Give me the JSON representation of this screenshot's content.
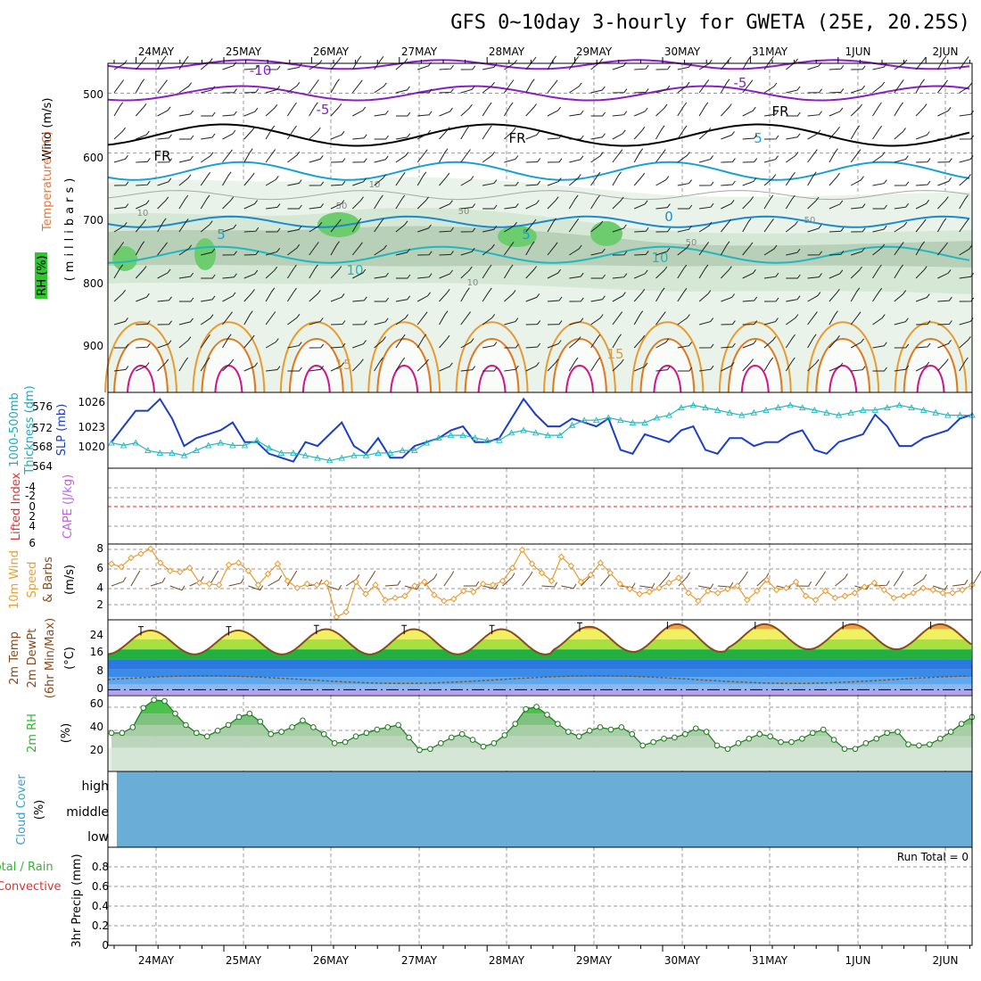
{
  "title": "GFS 0~10day 3-hourly for GWETA (25E, 20.25S)",
  "dates": [
    "24MAY",
    "25MAY",
    "26MAY",
    "27MAY",
    "28MAY",
    "29MAY",
    "30MAY",
    "31MAY",
    "1JUN",
    "2JUN"
  ],
  "colors": {
    "purple": "#8a1ec8",
    "cyan": "#1aa0d8",
    "teal": "#20b8c0",
    "orange": "#e89a30",
    "orange2": "#e07820",
    "magenta": "#d0188a",
    "blue": "#1a3ec8",
    "green": "#1ec81e",
    "red": "#e02020",
    "violet": "#c060e0",
    "skyblue": "#6aaed8",
    "brown": "#8a4a1a"
  },
  "chart_data": [
    {
      "type": "contour",
      "panel": "upper-air",
      "ylabel_parts": [
        "Wind (m/s)",
        "Temperature (°C)",
        "RH (%)"
      ],
      "ylabel_main": "(millibars)",
      "yticks": [
        "500",
        "600",
        "700",
        "800",
        "900"
      ],
      "ylim": [
        1000,
        450
      ],
      "contour_labels": [
        "-10",
        "-5",
        "-5",
        "FR",
        "FR",
        "FR",
        "5",
        "5",
        "5",
        "0",
        "10",
        "10",
        "15",
        "15",
        "10",
        "10",
        "50",
        "50",
        "10",
        "50",
        "50"
      ],
      "isotherm_levels_mb": {
        "m10": 452,
        "m5": 500,
        "fr": 570,
        "p5": 630,
        "p0": 715,
        "p10": 770
      }
    },
    {
      "type": "line",
      "panel": "sea-level pressure and thickness",
      "ylabel_left": [
        "1000-500mb",
        "Thickness (dm)"
      ],
      "ylabel_right": "SLP (mb)",
      "yticks_left": [
        "576",
        "572",
        "568",
        "564"
      ],
      "yticks_right": [
        "1026",
        "1023",
        "1020"
      ],
      "series": [
        {
          "name": "SLP (mb)",
          "ylim": [
            1018,
            1027
          ],
          "values": [
            1021,
            1023,
            1025,
            1025,
            1026.5,
            1024,
            1020.5,
            1021.5,
            1022,
            1022.5,
            1023.5,
            1021,
            1021,
            1019.5,
            1019,
            1018.5,
            1021,
            1020.5,
            1022,
            1023.5,
            1020.5,
            1019.5,
            1021.5,
            1019,
            1019,
            1020.5,
            1021,
            1021.5,
            1022.5,
            1023,
            1021,
            1021,
            1021.5,
            1024,
            1026.5,
            1024.5,
            1023,
            1023,
            1024,
            1023.5,
            1023,
            1024,
            1020,
            1019.5,
            1022,
            1021.5,
            1021,
            1022.5,
            1023,
            1020,
            1019.5,
            1021.5,
            1021.5,
            1020.5,
            1021,
            1021,
            1022,
            1022.5,
            1020,
            1019.5,
            1021,
            1021.5,
            1022,
            1024.5,
            1023,
            1020.5,
            1020.5,
            1021.5,
            1022,
            1022.5,
            1024,
            1024.5
          ]
        },
        {
          "name": "1000-500mb Thickness (dm)",
          "ylim": [
            564,
            578
          ],
          "values": [
            568.5,
            568,
            568.5,
            567,
            566.5,
            566.5,
            566,
            567,
            568,
            568.5,
            568,
            568,
            569,
            567.5,
            566.5,
            566.5,
            566,
            565.5,
            565,
            565.5,
            566,
            566,
            566.5,
            566.5,
            567,
            567,
            568.5,
            569.5,
            570,
            570,
            569.5,
            569,
            569,
            570.5,
            571,
            570.5,
            570,
            570,
            572,
            573,
            573,
            573.5,
            573,
            572.5,
            572.5,
            573.5,
            574,
            575.5,
            576,
            575.5,
            575,
            574.5,
            574,
            574.5,
            575,
            575.5,
            576,
            575.5,
            575,
            574.5,
            574,
            574.5,
            575,
            575,
            575.5,
            576,
            575.5,
            575,
            574.5,
            574,
            574,
            574
          ]
        }
      ]
    },
    {
      "type": "line",
      "panel": "lifted index and CAPE",
      "ylabel_left": [
        "Lifted Index"
      ],
      "ylabel_right": "CAPE (J/kg)",
      "yticks": [
        "-4",
        "-2",
        "0",
        "2",
        "4",
        "6"
      ],
      "zero_line": 0
    },
    {
      "type": "line",
      "panel": "10m wind",
      "ylabel_left": [
        "10m Wind",
        "Speed"
      ],
      "ylabel_right": "& Barbs",
      "yunits": "(m/s)",
      "yticks": [
        "8",
        "6",
        "4",
        "2"
      ],
      "ylim": [
        0.8,
        8
      ],
      "values": [
        6.2,
        5.9,
        6.8,
        7.2,
        7.7,
        6.3,
        5.5,
        5.4,
        5.8,
        4.3,
        4.2,
        4.1,
        6.1,
        6.3,
        5.5,
        4.1,
        5.2,
        6.2,
        4.5,
        3.8,
        4.2,
        4.1,
        4.3,
        0.9,
        1.4,
        4.4,
        3.2,
        4.1,
        2.6,
        2.8,
        3.0,
        4.0,
        4.4,
        3.1,
        2.5,
        2.7,
        3.5,
        3.4,
        4.2,
        4.1,
        4.5,
        5.8,
        7.6,
        6.2,
        5.3,
        4.5,
        6.9,
        6.0,
        4.4,
        5.1,
        6.3,
        5.3,
        4.2,
        3.7,
        3.2,
        3.4,
        3.8,
        4.3,
        4.8,
        3.3,
        2.5,
        3.5,
        3.3,
        3.7,
        4.0,
        2.6,
        3.5,
        4.6,
        3.6,
        3.8,
        4.4,
        3.0,
        2.6,
        3.5,
        2.8,
        3.0,
        3.3,
        3.9,
        4.3,
        3.6,
        2.8,
        3.0,
        3.3,
        3.8,
        3.6,
        3.3,
        3.3,
        3.6,
        4.1
      ]
    },
    {
      "type": "area",
      "panel": "2m temperature",
      "ylabel_left": [
        "2m Temp",
        "2m DewPt",
        "(6hr Min/Max)"
      ],
      "yunits": "(°C)",
      "yticks": [
        "24",
        "16",
        "8",
        "0"
      ],
      "ylim": [
        -2,
        27
      ],
      "temp_max": [
        23.5,
        23.5,
        24,
        24,
        24,
        25,
        26,
        26,
        26,
        26
      ],
      "temp_min": [
        14,
        14,
        14,
        14,
        14,
        15,
        15,
        16,
        16,
        16
      ]
    },
    {
      "type": "area",
      "panel": "2m relative humidity",
      "ylabel_left": [
        "2m RH"
      ],
      "yunits": "(%)",
      "yticks": [
        "60",
        "40",
        "20"
      ],
      "ylim": [
        0,
        65
      ],
      "values": [
        33,
        33,
        38,
        55,
        62,
        61,
        50,
        40,
        33,
        30,
        35,
        40,
        47,
        50,
        43,
        32,
        34,
        38,
        44,
        38,
        32,
        24,
        25,
        30,
        33,
        36,
        38,
        40,
        29,
        18,
        19,
        24,
        29,
        32,
        27,
        21,
        24,
        31,
        41,
        54,
        56,
        49,
        41,
        34,
        30,
        35,
        38,
        36,
        38,
        32,
        22,
        25,
        28,
        29,
        32,
        37,
        34,
        22,
        19,
        24,
        28,
        32,
        30,
        25,
        25,
        28,
        33,
        36,
        27,
        19,
        19,
        24,
        28,
        33,
        34,
        23,
        22,
        23,
        28,
        34,
        41,
        47
      ]
    },
    {
      "type": "area",
      "panel": "cloud cover",
      "ylabel_left": [
        "Cloud Cover"
      ],
      "yunits": "(%)",
      "layer_labels": [
        "high",
        "middle",
        "low"
      ]
    },
    {
      "type": "bar",
      "panel": "3hr precipitation",
      "ylabel_left": [
        "Total / Rain",
        "Convective"
      ],
      "ylabel_right": "3hr Precip (mm)",
      "yticks": [
        "0.8",
        "0.6",
        "0.4",
        "0.2",
        "0"
      ],
      "ylim": [
        0,
        1.0
      ],
      "run_total_label": "Run Total = 0",
      "values": []
    }
  ]
}
